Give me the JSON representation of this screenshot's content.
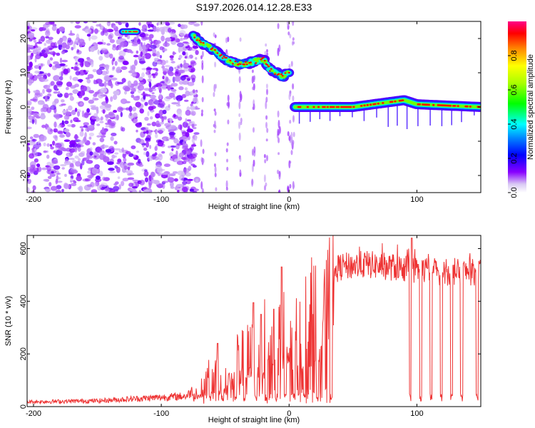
{
  "title": "S197.2026.014.12.28.E33",
  "chart_data": [
    {
      "type": "heatmap",
      "name": "spectrogram",
      "xlabel": "Height of straight line (km)",
      "ylabel": "Frequency (Hz)",
      "xlim": [
        -205,
        150
      ],
      "ylim": [
        -25,
        25
      ],
      "xticks": [
        -200,
        -100,
        0,
        100
      ],
      "yticks": [
        -20,
        -10,
        0,
        10,
        20
      ],
      "ridge_track": [
        {
          "x": -130,
          "y": 22
        },
        {
          "x": -118,
          "y": 22
        },
        {
          "x": -75,
          "y": 21
        },
        {
          "x": -70,
          "y": 19
        },
        {
          "x": -60,
          "y": 17
        },
        {
          "x": -50,
          "y": 14
        },
        {
          "x": -45,
          "y": 13
        },
        {
          "x": -35,
          "y": 12.5
        },
        {
          "x": -20,
          "y": 14
        },
        {
          "x": -15,
          "y": 11
        },
        {
          "x": -5,
          "y": 9
        },
        {
          "x": 0,
          "y": 10
        },
        {
          "x": 5,
          "y": 0
        },
        {
          "x": 50,
          "y": 0
        },
        {
          "x": 80,
          "y": 1.5
        },
        {
          "x": 90,
          "y": 2
        },
        {
          "x": 100,
          "y": 0.8
        },
        {
          "x": 150,
          "y": 0
        }
      ],
      "colorbar": {
        "label": "Normalized spectral amplitude",
        "ticks": [
          "0.0",
          "0.2",
          "0.4",
          "0.6",
          "0.8"
        ],
        "range": [
          0,
          1
        ]
      }
    },
    {
      "type": "line",
      "name": "snr",
      "xlabel": "Height of straight line (km)",
      "ylabel": "SNR (10 * v/v)",
      "xlim": [
        -205,
        150
      ],
      "ylim": [
        0,
        650
      ],
      "xticks": [
        -200,
        -100,
        0,
        100
      ],
      "yticks": [
        0,
        200,
        400,
        600
      ],
      "color": "#ee3333",
      "envelope": [
        {
          "x": -205,
          "y": 18
        },
        {
          "x": -150,
          "y": 22
        },
        {
          "x": -100,
          "y": 35
        },
        {
          "x": -80,
          "y": 40
        },
        {
          "x": -70,
          "y": 90
        },
        {
          "x": -60,
          "y": 150
        },
        {
          "x": -50,
          "y": 120
        },
        {
          "x": -40,
          "y": 210
        },
        {
          "x": -30,
          "y": 250
        },
        {
          "x": -20,
          "y": 300
        },
        {
          "x": -10,
          "y": 330
        },
        {
          "x": 0,
          "y": 350
        },
        {
          "x": 10,
          "y": 390
        },
        {
          "x": 20,
          "y": 440
        },
        {
          "x": 30,
          "y": 500
        },
        {
          "x": 40,
          "y": 530
        },
        {
          "x": 60,
          "y": 540
        },
        {
          "x": 80,
          "y": 530
        },
        {
          "x": 100,
          "y": 520
        },
        {
          "x": 120,
          "y": 510
        },
        {
          "x": 150,
          "y": 510
        }
      ],
      "spikes": [
        {
          "x": -56,
          "y": 240
        },
        {
          "x": -28,
          "y": 395
        },
        {
          "x": -22,
          "y": 350
        },
        {
          "x": -12,
          "y": 370
        },
        {
          "x": -6,
          "y": 530
        },
        {
          "x": 96,
          "y": 640
        }
      ],
      "dropouts": [
        -70,
        -62,
        -52,
        -42,
        -35,
        -26,
        -18,
        -10,
        -3,
        4,
        12,
        22,
        33,
        95,
        103,
        111,
        119,
        127,
        135,
        147
      ]
    }
  ]
}
